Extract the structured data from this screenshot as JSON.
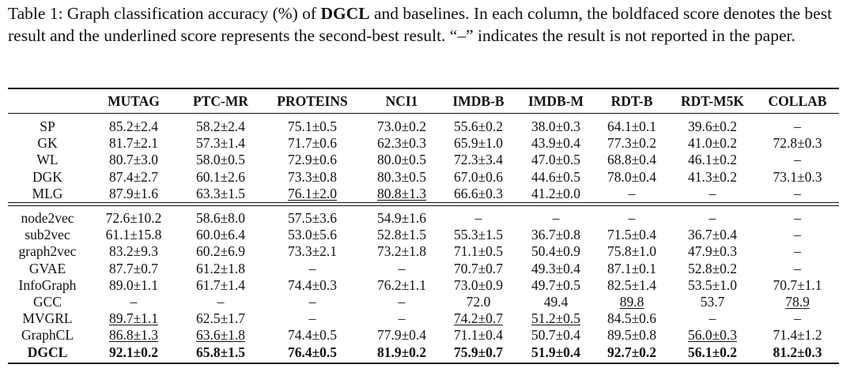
{
  "caption": {
    "prefix": "Table 1: Graph classification accuracy (%) of ",
    "model": "DGCL",
    "suffix": " and baselines. In each column, the boldfaced score denotes the best result and the underlined score represents the second-best result.  “–” indicates the result is not reported in the paper."
  },
  "columns": [
    "",
    "MUTAG",
    "PTC-MR",
    "PROTEINS",
    "NCI1",
    "IMDB-B",
    "IMDB-M",
    "RDT-B",
    "RDT-M5K",
    "COLLAB"
  ],
  "group1": [
    {
      "name": "SP",
      "cells": [
        "85.2±2.4",
        "58.2±2.4",
        "75.1±0.5",
        "73.0±0.2",
        "55.6±0.2",
        "38.0±0.3",
        "64.1±0.1",
        "39.6±0.2",
        "–"
      ]
    },
    {
      "name": "GK",
      "cells": [
        "81.7±2.1",
        "57.3±1.4",
        "71.7±0.6",
        "62.3±0.3",
        "65.9±1.0",
        "43.9±0.4",
        "77.3±0.2",
        "41.0±0.2",
        "72.8±0.3"
      ]
    },
    {
      "name": "WL",
      "cells": [
        "80.7±3.0",
        "58.0±0.5",
        "72.9±0.6",
        "80.0±0.5",
        "72.3±3.4",
        "47.0±0.5",
        "68.8±0.4",
        "46.1±0.2",
        "–"
      ]
    },
    {
      "name": "DGK",
      "cells": [
        "87.4±2.7",
        "60.1±2.6",
        "73.3±0.8",
        "80.3±0.5",
        "67.0±0.6",
        "44.6±0.5",
        "78.0±0.4",
        "41.3±0.2",
        "73.1±0.3"
      ]
    },
    {
      "name": "MLG",
      "cells": [
        "87.9±1.6",
        "63.3±1.5",
        "76.1±2.0",
        "80.8±1.3",
        "66.6±0.3",
        "41.2±0.0",
        "–",
        "–",
        "–"
      ]
    }
  ],
  "group2": [
    {
      "name": "node2vec",
      "cells": [
        "72.6±10.2",
        "58.6±8.0",
        "57.5±3.6",
        "54.9±1.6",
        "–",
        "–",
        "–",
        "–",
        "–"
      ]
    },
    {
      "name": "sub2vec",
      "cells": [
        "61.1±15.8",
        "60.0±6.4",
        "53.0±5.6",
        "52.8±1.5",
        "55.3±1.5",
        "36.7±0.8",
        "71.5±0.4",
        "36.7±0.4",
        "–"
      ]
    },
    {
      "name": "graph2vec",
      "cells": [
        "83.2±9.3",
        "60.2±6.9",
        "73.3±2.1",
        "73.2±1.8",
        "71.1±0.5",
        "50.4±0.9",
        "75.8±1.0",
        "47.9±0.3",
        "–"
      ]
    },
    {
      "name": "GVAE",
      "cells": [
        "87.7±0.7",
        "61.2±1.8",
        "–",
        "–",
        "70.7±0.7",
        "49.3±0.4",
        "87.1±0.1",
        "52.8±0.2",
        "–"
      ]
    },
    {
      "name": "InfoGraph",
      "cells": [
        "89.0±1.1",
        "61.7±1.4",
        "74.4±0.3",
        "76.2±1.1",
        "73.0±0.9",
        "49.7±0.5",
        "82.5±1.4",
        "53.5±1.0",
        "70.7±1.1"
      ]
    },
    {
      "name": "GCC",
      "cells": [
        "–",
        "–",
        "–",
        "–",
        "72.0",
        "49.4",
        "89.8",
        "53.7",
        "78.9"
      ]
    },
    {
      "name": "MVGRL",
      "cells": [
        "89.7±1.1",
        "62.5±1.7",
        "–",
        "–",
        "74.2±0.7",
        "51.2±0.5",
        "84.5±0.6",
        "–",
        "–"
      ]
    },
    {
      "name": "GraphCL",
      "cells": [
        "86.8±1.3",
        "63.6±1.8",
        "74.4±0.5",
        "77.9±0.4",
        "71.1±0.4",
        "50.7±0.4",
        "89.5±0.8",
        "56.0±0.3",
        "71.4±1.2"
      ]
    },
    {
      "name": "DGCL",
      "cells": [
        "92.1±0.2",
        "65.8±1.5",
        "76.4±0.5",
        "81.9±0.2",
        "75.9±0.7",
        "51.9±0.4",
        "92.7±0.2",
        "56.1±0.2",
        "81.2±0.3"
      ]
    }
  ]
}
